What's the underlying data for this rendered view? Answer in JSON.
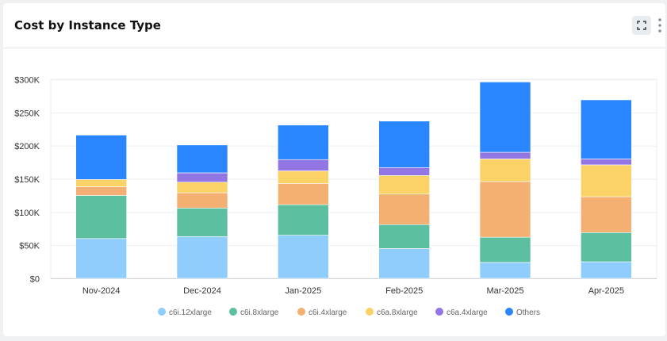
{
  "header": {
    "title": "Cost by Instance Type"
  },
  "icons": {
    "expand": "expand-icon",
    "more": "more-vertical-icon"
  },
  "chart_data": {
    "type": "bar",
    "stacked": true,
    "title": "",
    "xlabel": "",
    "ylabel": "",
    "ylim": [
      0,
      300000
    ],
    "yticks": [
      {
        "value": 0,
        "label": "$0"
      },
      {
        "value": 50000,
        "label": "$50K"
      },
      {
        "value": 100000,
        "label": "$100K"
      },
      {
        "value": 150000,
        "label": "$150K"
      },
      {
        "value": 200000,
        "label": "$200K"
      },
      {
        "value": 250000,
        "label": "$250K"
      },
      {
        "value": 300000,
        "label": "$300K"
      }
    ],
    "grid": true,
    "legend_position": "bottom",
    "categories": [
      "Nov-2024",
      "Dec-2024",
      "Jan-2025",
      "Feb-2025",
      "Mar-2025",
      "Apr-2025"
    ],
    "series": [
      {
        "name": "c6i.12xlarge",
        "color": "#8fcdfd",
        "values": [
          60000,
          63000,
          65000,
          45000,
          24000,
          25000
        ]
      },
      {
        "name": "c6i.8xlarge",
        "color": "#5cc0a0",
        "values": [
          65000,
          43000,
          46000,
          36000,
          38000,
          44000
        ]
      },
      {
        "name": "c6i.4xlarge",
        "color": "#f4b073",
        "values": [
          13000,
          23000,
          32000,
          46000,
          84000,
          54000
        ]
      },
      {
        "name": "c6a.8xlarge",
        "color": "#fad266",
        "values": [
          11000,
          16000,
          19000,
          28000,
          34000,
          48000
        ]
      },
      {
        "name": "c6a.4xlarge",
        "color": "#9277e4",
        "values": [
          0,
          14000,
          17000,
          12000,
          10000,
          9000
        ]
      },
      {
        "name": "Others",
        "color": "#2a86ff",
        "values": [
          67000,
          42000,
          52000,
          70000,
          106000,
          89000
        ]
      }
    ]
  }
}
